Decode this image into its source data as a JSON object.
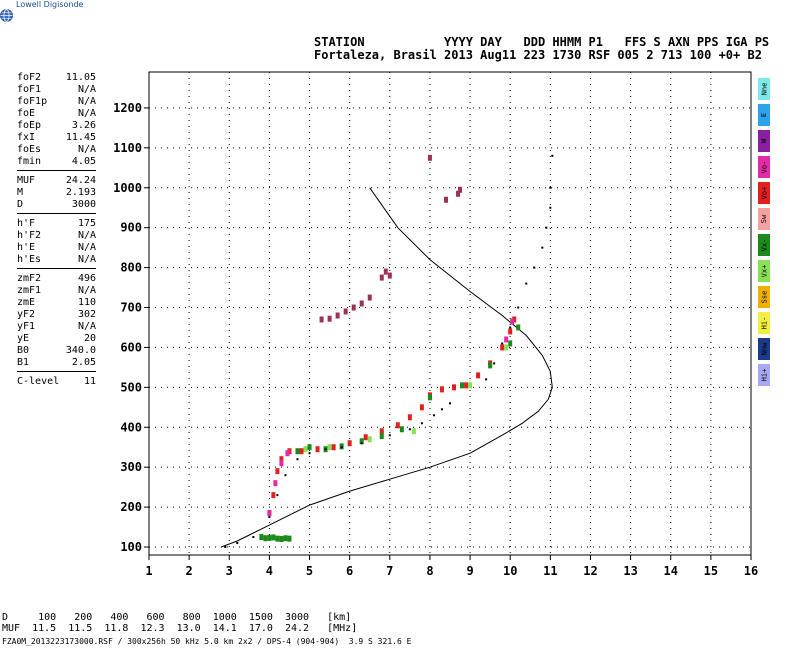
{
  "logo": {
    "name": "Lowell Digisonde",
    "icon": "globe-icon"
  },
  "header": {
    "line1": "STATION           YYYY DAY   DDD HHMM P1   FFS S AXN PPS IGA PS",
    "line2": "Fortaleza, Brasil 2013 Aug11 223 1730 RSF 005 2 713 100 +0+ B2"
  },
  "params": {
    "group1": [
      {
        "k": "foF2",
        "v": "11.05"
      },
      {
        "k": "foF1",
        "v": "N/A"
      },
      {
        "k": "foF1p",
        "v": "N/A"
      },
      {
        "k": "foE",
        "v": "N/A"
      },
      {
        "k": "foEp",
        "v": "3.26"
      },
      {
        "k": "fxI",
        "v": "11.45"
      },
      {
        "k": "foEs",
        "v": "N/A"
      },
      {
        "k": "fmin",
        "v": "4.05"
      }
    ],
    "group2": [
      {
        "k": "MUF",
        "v": "24.24"
      },
      {
        "k": "M",
        "v": "2.193"
      },
      {
        "k": "D",
        "v": "3000"
      }
    ],
    "group3": [
      {
        "k": "h'F",
        "v": "175"
      },
      {
        "k": "h'F2",
        "v": "N/A"
      },
      {
        "k": "h'E",
        "v": "N/A"
      },
      {
        "k": "h'Es",
        "v": "N/A"
      }
    ],
    "group4": [
      {
        "k": "zmF2",
        "v": "496"
      },
      {
        "k": "zmF1",
        "v": "N/A"
      },
      {
        "k": "zmE",
        "v": "110"
      },
      {
        "k": "yF2",
        "v": "302"
      },
      {
        "k": "yF1",
        "v": "N/A"
      },
      {
        "k": "yE",
        "v": "20"
      },
      {
        "k": "B0",
        "v": "340.0"
      },
      {
        "k": "B1",
        "v": "2.05"
      }
    ],
    "group5": [
      {
        "k": "C-level",
        "v": "11"
      }
    ]
  },
  "legend": [
    {
      "label": "Nne",
      "color": "#7fe9ea"
    },
    {
      "label": "E",
      "color": "#2aa3ea"
    },
    {
      "label": "W",
      "color": "#8a1fa0"
    },
    {
      "label": "Vo-",
      "color": "#e12ba8"
    },
    {
      "label": "Vo+",
      "color": "#e22020"
    },
    {
      "label": "Sw",
      "color": "#f2a0a0"
    },
    {
      "label": "Vx-",
      "color": "#1a8a1a"
    },
    {
      "label": "Vx+",
      "color": "#88e056"
    },
    {
      "label": "Sse",
      "color": "#f0b000"
    },
    {
      "label": "Hi-",
      "color": "#f2ee40"
    },
    {
      "label": "Nnw",
      "color": "#1a3a8a"
    },
    {
      "label": "Hi+",
      "color": "#a8a8f0"
    }
  ],
  "mufd": {
    "row1": "D     100   200   400   600   800  1000  1500  3000   [km]",
    "row2": "MUF  11.5  11.5  11.8  12.3  13.0  14.1  17.0  24.2   [MHz]"
  },
  "footer": "FZA0M_2013223173000.RSF / 300x256h 50 kHz 5.0 km 2x2 / DPS-4 (904-904)  3.9 S 321.6 E",
  "chart_data": {
    "type": "scatter",
    "title": "",
    "xlabel": "",
    "ylabel": "",
    "xlim": [
      1,
      16
    ],
    "ylim": [
      80,
      1290
    ],
    "xticks": [
      1,
      2,
      3,
      4,
      5,
      6,
      7,
      8,
      9,
      10,
      11,
      12,
      13,
      14,
      15,
      16
    ],
    "yticks": [
      100,
      200,
      300,
      400,
      500,
      600,
      700,
      800,
      900,
      1000,
      1100,
      1200
    ],
    "grid": "dotted",
    "series": [
      {
        "name": "O-trace (Vo+)",
        "color": "#e22020",
        "x": [
          4.0,
          4.1,
          4.2,
          4.3,
          4.5,
          4.8,
          5.2,
          5.6,
          6.0,
          6.4,
          6.8,
          7.2,
          7.5,
          7.8,
          8.0,
          8.3,
          8.6,
          8.9,
          9.2,
          9.5,
          9.8,
          10.0,
          10.1
        ],
        "y": [
          185,
          230,
          290,
          320,
          340,
          340,
          345,
          350,
          360,
          375,
          390,
          405,
          425,
          450,
          480,
          495,
          500,
          505,
          530,
          560,
          600,
          640,
          670
        ]
      },
      {
        "name": "O-trace (Vo-)",
        "color": "#e12ba8",
        "x": [
          4.0,
          4.15,
          4.3,
          4.45,
          9.9,
          10.05
        ],
        "y": [
          185,
          260,
          310,
          335,
          620,
          665
        ]
      },
      {
        "name": "X-trace (Vx-)",
        "color": "#1a8a1a",
        "x": [
          4.7,
          5.0,
          5.4,
          5.8,
          6.3,
          6.8,
          7.3,
          8.0,
          8.8,
          9.5,
          10.0,
          10.2
        ],
        "y": [
          340,
          350,
          345,
          352,
          365,
          378,
          395,
          475,
          505,
          555,
          610,
          650
        ]
      },
      {
        "name": "X-trace (Vx+)",
        "color": "#88e056",
        "x": [
          4.9,
          5.5,
          6.5,
          7.6,
          9.0,
          9.9
        ],
        "y": [
          345,
          350,
          370,
          390,
          505,
          600
        ]
      },
      {
        "name": "E region echoes",
        "color": "#1a8a1a",
        "x": [
          3.8,
          3.9,
          4.0,
          4.1,
          4.2,
          4.3,
          4.4,
          4.5
        ],
        "y": [
          125,
          122,
          123,
          124,
          121,
          120,
          122,
          121
        ]
      },
      {
        "name": "Multiple F echoes",
        "color": "#a03050",
        "x": [
          5.3,
          5.5,
          5.7,
          5.9,
          6.1,
          6.3,
          6.5,
          6.8,
          6.9,
          7.0
        ],
        "y": [
          670,
          672,
          680,
          690,
          700,
          710,
          725,
          775,
          790,
          780
        ]
      },
      {
        "name": "High echoes",
        "color": "#a03050",
        "x": [
          8.0,
          8.4,
          8.7,
          8.75
        ],
        "y": [
          1075,
          970,
          985,
          995
        ]
      },
      {
        "name": "Black trace",
        "color": "#000000",
        "x": [
          2.9,
          3.2,
          3.6,
          4.0,
          4.2,
          4.4,
          4.7,
          5.0,
          5.4,
          5.8,
          6.3,
          7.0,
          7.5,
          7.8,
          8.1,
          8.3,
          8.5,
          9.4,
          9.6,
          9.8,
          10.0,
          10.2,
          10.4,
          10.6,
          10.8,
          10.9,
          11.0,
          11.05,
          11.0
        ],
        "y": [
          100,
          110,
          125,
          175,
          230,
          280,
          320,
          335,
          345,
          350,
          360,
          380,
          395,
          410,
          430,
          445,
          460,
          520,
          560,
          610,
          650,
          700,
          760,
          800,
          850,
          900,
          950,
          1080,
          1000
        ]
      }
    ],
    "profile": {
      "name": "Electron density profile",
      "x": [
        2.8,
        3.2,
        3.6,
        4.2,
        5.0,
        6.0,
        7.0,
        8.0,
        9.0,
        9.8,
        10.3,
        10.7,
        10.95,
        11.05,
        11.0,
        10.8,
        10.4,
        9.8,
        9.0,
        8.0,
        7.2,
        6.5
      ],
      "y": [
        100,
        115,
        135,
        165,
        205,
        240,
        270,
        300,
        335,
        380,
        410,
        440,
        470,
        500,
        540,
        580,
        630,
        680,
        740,
        820,
        900,
        1000
      ]
    }
  }
}
